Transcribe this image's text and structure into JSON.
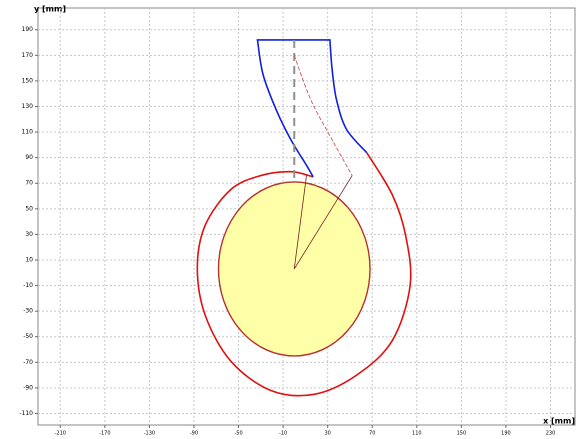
{
  "chart_data": {
    "type": "line",
    "xlabel": "x [mm]",
    "ylabel": "y [mm]",
    "xlim": [
      -230,
      252
    ],
    "ylim": [
      -119,
      207
    ],
    "xticks": [
      -210,
      -170,
      -130,
      -90,
      -50,
      -10,
      30,
      70,
      110,
      150,
      190,
      230
    ],
    "yticks": [
      190,
      170,
      150,
      130,
      110,
      90,
      70,
      50,
      30,
      10,
      -10,
      -30,
      -50,
      -70,
      -90,
      -110
    ],
    "grid": true,
    "circle": {
      "cx": 0,
      "cy": 3,
      "r": 68,
      "fill": "#ffffa8",
      "color": "#b83030"
    },
    "series": [
      {
        "color": "#e01010",
        "width": 1.6,
        "dash": null,
        "x": [
          17,
          -3,
          -30,
          -57,
          -80,
          -87,
          -80,
          -57,
          -21,
          18,
          56,
          88,
          104,
          100,
          88,
          65
        ],
        "y": [
          75,
          79,
          76,
          65,
          37,
          4,
          -33,
          -69,
          -92,
          -95,
          -80,
          -53,
          -10,
          29,
          61,
          94
        ]
      },
      {
        "color": "#1020e0",
        "width": 1.6,
        "dash": null,
        "x": [
          65,
          47,
          38,
          34,
          32,
          -33,
          -28,
          -16,
          -3,
          11,
          17
        ],
        "y": [
          94,
          112,
          135,
          159,
          182,
          182,
          155,
          127,
          104,
          84,
          75
        ]
      },
      {
        "color": "#909090",
        "width": 2,
        "dash": "8 5",
        "x": [
          0,
          0
        ],
        "y": [
          182,
          72
        ]
      },
      {
        "color": "#d04040",
        "width": 0.8,
        "dash": "4 2",
        "x": [
          0,
          15,
          34,
          52
        ],
        "y": [
          170,
          135,
          104,
          76
        ]
      },
      {
        "color": "#7a2020",
        "width": 0.8,
        "dash": null,
        "x": [
          11,
          0,
          52
        ],
        "y": [
          76,
          3,
          76
        ]
      }
    ]
  }
}
